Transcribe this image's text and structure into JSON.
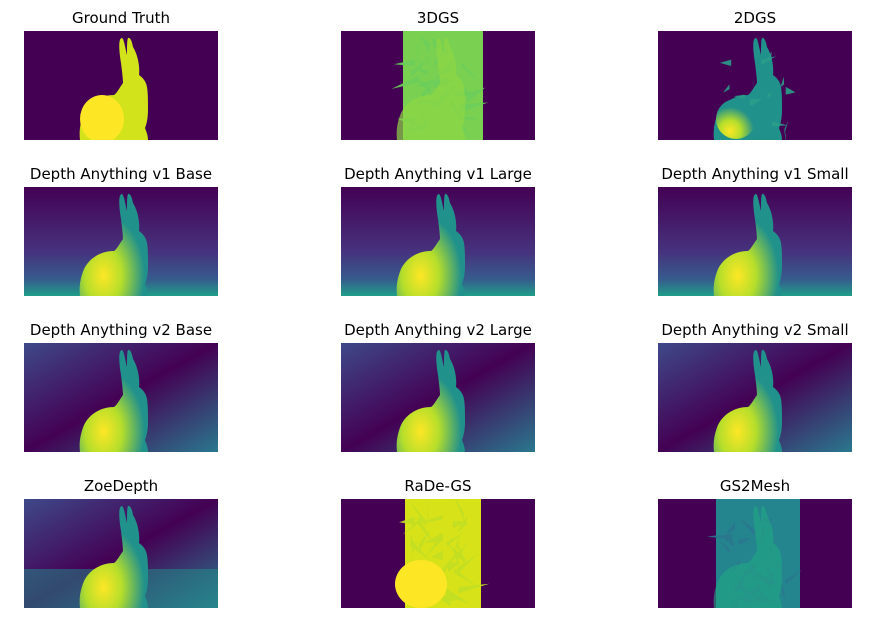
{
  "colors": {
    "background": "#440154",
    "low": "#3b528b",
    "mid": "#21918c",
    "high": "#5ec962",
    "peak": "#fde725"
  },
  "panels": [
    {
      "title": "Ground Truth",
      "style": "gt"
    },
    {
      "title": "3DGS",
      "style": "gs3d"
    },
    {
      "title": "2DGS",
      "style": "gs2d"
    },
    {
      "title": "Depth Anything v1 Base",
      "style": "da1"
    },
    {
      "title": "Depth Anything v1 Large",
      "style": "da1"
    },
    {
      "title": "Depth Anything v1 Small",
      "style": "da1"
    },
    {
      "title": "Depth Anything v2 Base",
      "style": "da2"
    },
    {
      "title": "Depth Anything v2 Large",
      "style": "da2"
    },
    {
      "title": "Depth Anything v2 Small",
      "style": "da2"
    },
    {
      "title": "ZoeDepth",
      "style": "zoe"
    },
    {
      "title": "RaDe-GS",
      "style": "rade"
    },
    {
      "title": "GS2Mesh",
      "style": "gs2mesh"
    }
  ]
}
